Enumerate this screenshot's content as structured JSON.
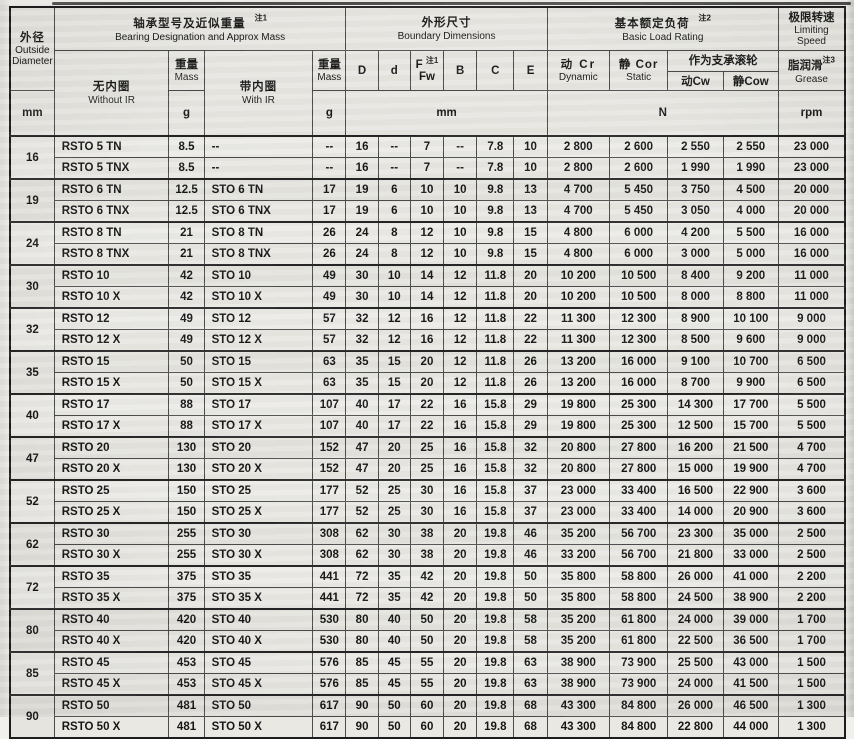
{
  "header": {
    "od": {
      "zh": "外径",
      "en1": "Outside",
      "en2": "Diameter",
      "unit": "mm"
    },
    "designation": {
      "zh": "轴承型号及近似重量",
      "note": "注1",
      "en": "Bearing Designation and Approx Mass"
    },
    "without_ir": {
      "zh": "无内圈",
      "en": "Without IR"
    },
    "mass1": {
      "zh": "重量",
      "en": "Mass",
      "unit": "g"
    },
    "with_ir": {
      "zh": "带内圈",
      "en": "With IR"
    },
    "mass2": {
      "zh": "重量",
      "en": "Mass",
      "unit": "g"
    },
    "boundary": {
      "zh": "外形尺寸",
      "en": "Boundary Dimensions",
      "unit": "mm"
    },
    "dims": {
      "D": "D",
      "d": "d",
      "F": "F",
      "f_note": "注1",
      "f_sub": "Fw",
      "B": "B",
      "C": "C",
      "E": "E"
    },
    "load": {
      "zh": "基本额定负荷",
      "note": "注2",
      "en": "Basic Load Rating",
      "unit": "N"
    },
    "dynamic": {
      "zh": "动  Cr",
      "en": "Dynamic"
    },
    "static": {
      "zh": "静  Cor",
      "en": "Static"
    },
    "roller": {
      "zh": "作为支承滚轮",
      "cw": "动Cw",
      "cow": "静Cow"
    },
    "speed": {
      "zh": "极限转速",
      "en1": "Limiting",
      "en2": "Speed"
    },
    "grease": {
      "zh": "脂润滑",
      "note": "注3",
      "en": "Grease",
      "unit": "rpm"
    }
  },
  "groups": [
    {
      "od": "16",
      "rows": [
        [
          "RSTO 5 TN",
          "8.5",
          "--",
          "--",
          "16",
          "--",
          "7",
          "--",
          "7.8",
          "10",
          "2 800",
          "2 600",
          "2 550",
          "2 550",
          "23 000"
        ],
        [
          "RSTO 5 TNX",
          "8.5",
          "--",
          "--",
          "16",
          "--",
          "7",
          "--",
          "7.8",
          "10",
          "2 800",
          "2 600",
          "1 990",
          "1 990",
          "23 000"
        ]
      ]
    },
    {
      "od": "19",
      "rows": [
        [
          "RSTO 6 TN",
          "12.5",
          "STO 6 TN",
          "17",
          "19",
          "6",
          "10",
          "10",
          "9.8",
          "13",
          "4 700",
          "5 450",
          "3 750",
          "4 500",
          "20 000"
        ],
        [
          "RSTO 6 TNX",
          "12.5",
          "STO 6 TNX",
          "17",
          "19",
          "6",
          "10",
          "10",
          "9.8",
          "13",
          "4 700",
          "5 450",
          "3 050",
          "4 000",
          "20 000"
        ]
      ]
    },
    {
      "od": "24",
      "rows": [
        [
          "RSTO 8 TN",
          "21",
          "STO 8 TN",
          "26",
          "24",
          "8",
          "12",
          "10",
          "9.8",
          "15",
          "4 800",
          "6 000",
          "4 200",
          "5 500",
          "16 000"
        ],
        [
          "RSTO 8 TNX",
          "21",
          "STO 8 TNX",
          "26",
          "24",
          "8",
          "12",
          "10",
          "9.8",
          "15",
          "4 800",
          "6 000",
          "3 000",
          "5 000",
          "16 000"
        ]
      ]
    },
    {
      "od": "30",
      "rows": [
        [
          "RSTO 10",
          "42",
          "STO 10",
          "49",
          "30",
          "10",
          "14",
          "12",
          "11.8",
          "20",
          "10 200",
          "10 500",
          "8 400",
          "9 200",
          "11 000"
        ],
        [
          "RSTO 10 X",
          "42",
          "STO 10 X",
          "49",
          "30",
          "10",
          "14",
          "12",
          "11.8",
          "20",
          "10 200",
          "10 500",
          "8 000",
          "8 800",
          "11 000"
        ]
      ]
    },
    {
      "od": "32",
      "rows": [
        [
          "RSTO 12",
          "49",
          "STO 12",
          "57",
          "32",
          "12",
          "16",
          "12",
          "11.8",
          "22",
          "11 300",
          "12 300",
          "8 900",
          "10 100",
          "9 000"
        ],
        [
          "RSTO 12 X",
          "49",
          "STO 12 X",
          "57",
          "32",
          "12",
          "16",
          "12",
          "11.8",
          "22",
          "11 300",
          "12 300",
          "8 500",
          "9 600",
          "9 000"
        ]
      ]
    },
    {
      "od": "35",
      "rows": [
        [
          "RSTO 15",
          "50",
          "STO 15",
          "63",
          "35",
          "15",
          "20",
          "12",
          "11.8",
          "26",
          "13 200",
          "16 000",
          "9 100",
          "10 700",
          "6 500"
        ],
        [
          "RSTO 15 X",
          "50",
          "STO 15 X",
          "63",
          "35",
          "15",
          "20",
          "12",
          "11.8",
          "26",
          "13 200",
          "16 000",
          "8 700",
          "9 900",
          "6 500"
        ]
      ]
    },
    {
      "od": "40",
      "rows": [
        [
          "RSTO 17",
          "88",
          "STO 17",
          "107",
          "40",
          "17",
          "22",
          "16",
          "15.8",
          "29",
          "19 800",
          "25 300",
          "14 300",
          "17 700",
          "5 500"
        ],
        [
          "RSTO 17 X",
          "88",
          "STO 17 X",
          "107",
          "40",
          "17",
          "22",
          "16",
          "15.8",
          "29",
          "19 800",
          "25 300",
          "12 500",
          "15 700",
          "5 500"
        ]
      ]
    },
    {
      "od": "47",
      "rows": [
        [
          "RSTO 20",
          "130",
          "STO 20",
          "152",
          "47",
          "20",
          "25",
          "16",
          "15.8",
          "32",
          "20 800",
          "27 800",
          "16 200",
          "21 500",
          "4 700"
        ],
        [
          "RSTO 20 X",
          "130",
          "STO 20 X",
          "152",
          "47",
          "20",
          "25",
          "16",
          "15.8",
          "32",
          "20 800",
          "27 800",
          "15 000",
          "19 900",
          "4 700"
        ]
      ]
    },
    {
      "od": "52",
      "rows": [
        [
          "RSTO 25",
          "150",
          "STO 25",
          "177",
          "52",
          "25",
          "30",
          "16",
          "15.8",
          "37",
          "23 000",
          "33 400",
          "16 500",
          "22 900",
          "3 600"
        ],
        [
          "RSTO 25 X",
          "150",
          "STO 25 X",
          "177",
          "52",
          "25",
          "30",
          "16",
          "15.8",
          "37",
          "23 000",
          "33 400",
          "14 000",
          "20 900",
          "3 600"
        ]
      ]
    },
    {
      "od": "62",
      "rows": [
        [
          "RSTO 30",
          "255",
          "STO 30",
          "308",
          "62",
          "30",
          "38",
          "20",
          "19.8",
          "46",
          "35 200",
          "56 700",
          "23 300",
          "35 000",
          "2 500"
        ],
        [
          "RSTO 30 X",
          "255",
          "STO 30 X",
          "308",
          "62",
          "30",
          "38",
          "20",
          "19.8",
          "46",
          "33 200",
          "56 700",
          "21 800",
          "33 000",
          "2 500"
        ]
      ]
    },
    {
      "od": "72",
      "rows": [
        [
          "RSTO 35",
          "375",
          "STO 35",
          "441",
          "72",
          "35",
          "42",
          "20",
          "19.8",
          "50",
          "35 800",
          "58 800",
          "26 000",
          "41 000",
          "2 200"
        ],
        [
          "RSTO 35 X",
          "375",
          "STO 35 X",
          "441",
          "72",
          "35",
          "42",
          "20",
          "19.8",
          "50",
          "35 800",
          "58 800",
          "24 500",
          "38 900",
          "2 200"
        ]
      ]
    },
    {
      "od": "80",
      "rows": [
        [
          "RSTO 40",
          "420",
          "STO 40",
          "530",
          "80",
          "40",
          "50",
          "20",
          "19.8",
          "58",
          "35 200",
          "61 800",
          "24 000",
          "39 000",
          "1 700"
        ],
        [
          "RSTO 40 X",
          "420",
          "STO 40 X",
          "530",
          "80",
          "40",
          "50",
          "20",
          "19.8",
          "58",
          "35 200",
          "61 800",
          "22 500",
          "36 500",
          "1 700"
        ]
      ]
    },
    {
      "od": "85",
      "rows": [
        [
          "RSTO 45",
          "453",
          "STO 45",
          "576",
          "85",
          "45",
          "55",
          "20",
          "19.8",
          "63",
          "38 900",
          "73 900",
          "25 500",
          "43 000",
          "1 500"
        ],
        [
          "RSTO 45 X",
          "453",
          "STO 45 X",
          "576",
          "85",
          "45",
          "55",
          "20",
          "19.8",
          "63",
          "38 900",
          "73 900",
          "24 000",
          "41 500",
          "1 500"
        ]
      ]
    },
    {
      "od": "90",
      "rows": [
        [
          "RSTO 50",
          "481",
          "STO 50",
          "617",
          "90",
          "50",
          "60",
          "20",
          "19.8",
          "68",
          "43 300",
          "84 800",
          "26 000",
          "46 500",
          "1 300"
        ],
        [
          "RSTO 50 X",
          "481",
          "STO 50 X",
          "617",
          "90",
          "50",
          "60",
          "20",
          "19.8",
          "68",
          "43 300",
          "84 800",
          "22 800",
          "44 000",
          "1 300"
        ]
      ]
    }
  ]
}
